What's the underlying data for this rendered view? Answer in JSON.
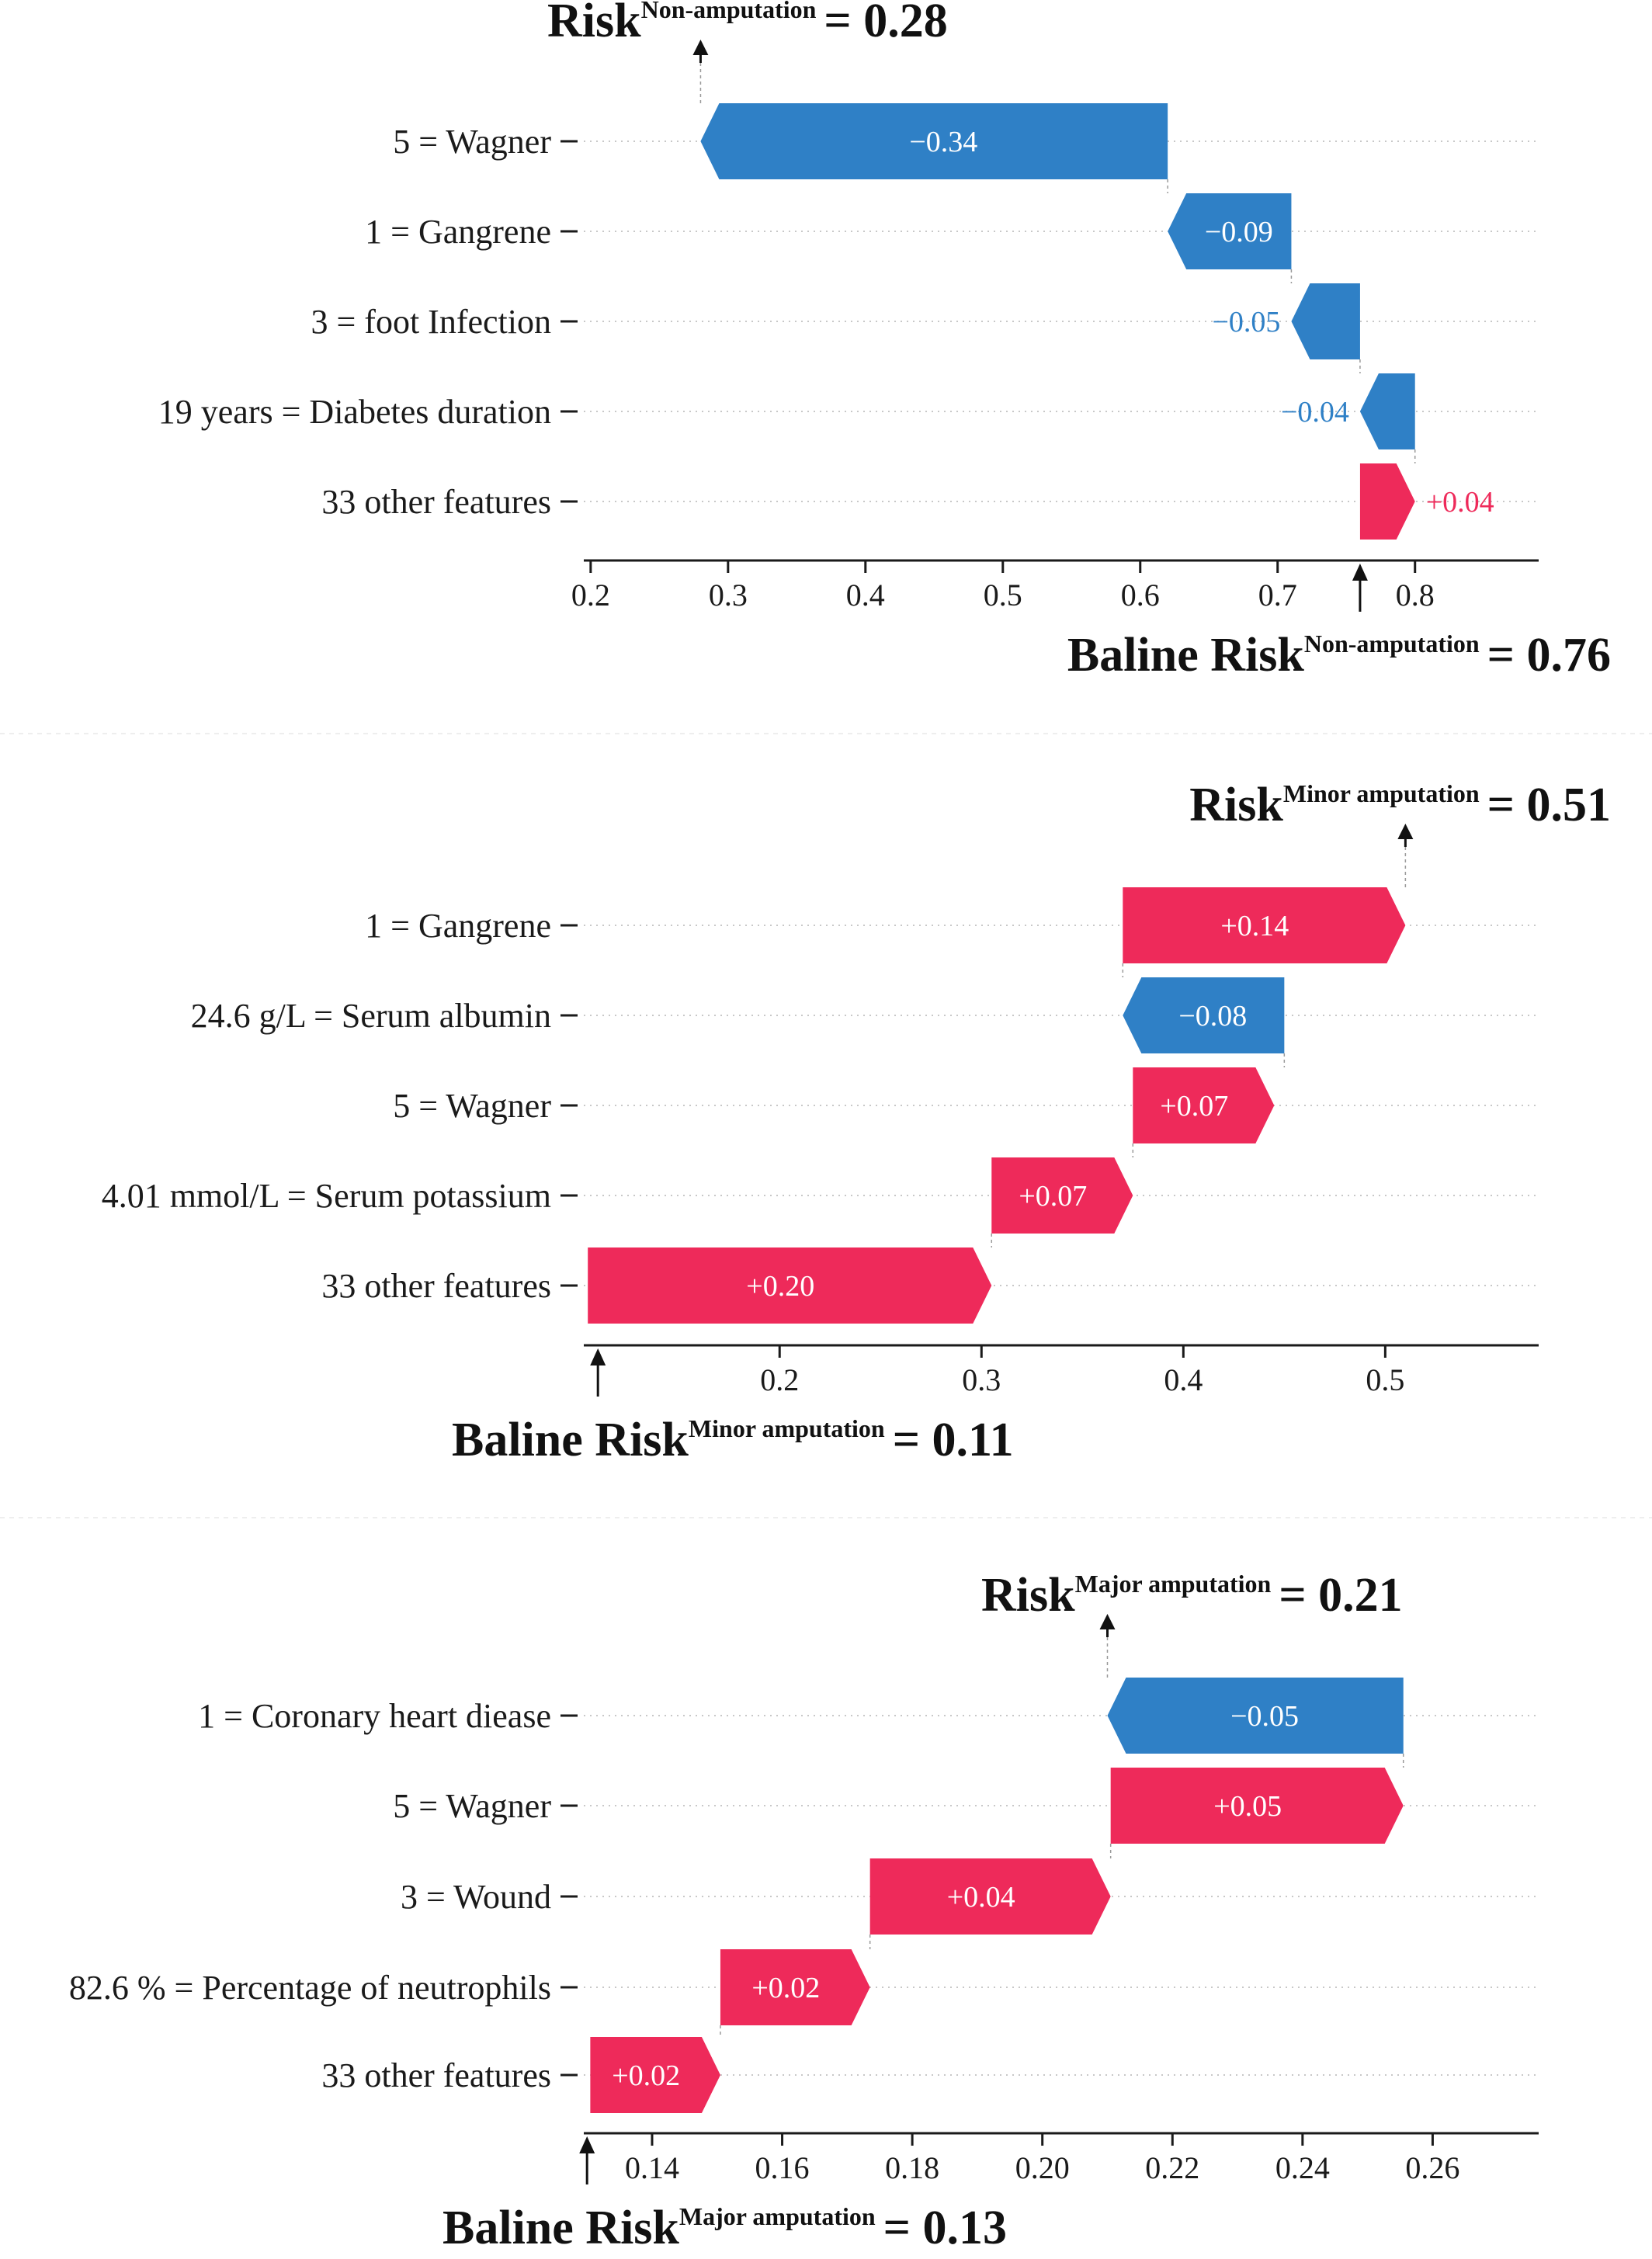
{
  "colors": {
    "positive": "#ee2a5a",
    "negative": "#2f80c6",
    "axis": "#1a1a1a",
    "grid": "#c8c8c8",
    "connector": "#9a9a9a"
  },
  "chart_data": [
    {
      "type": "waterfall",
      "final_risk": {
        "prefix": "Risk",
        "superscript": "Non-amputation",
        "suffix": "= 0.28",
        "value": 0.28
      },
      "base_risk": {
        "prefix": "Baline Risk",
        "superscript": "Non-amputation",
        "suffix": "= 0.76",
        "value": 0.76
      },
      "xlim": [
        0.195,
        0.89
      ],
      "ticks": [
        0.2,
        0.3,
        0.4,
        0.5,
        0.6,
        0.7,
        0.8
      ],
      "tick_labels": [
        "0.2",
        "0.3",
        "0.4",
        "0.5",
        "0.6",
        "0.7",
        "0.8"
      ],
      "features": [
        {
          "label": "5 = Wagner",
          "value": -0.34,
          "value_label": "−0.34",
          "start": 0.62,
          "end": 0.28
        },
        {
          "label": "1 = Gangrene",
          "value": -0.09,
          "value_label": "−0.09",
          "start": 0.71,
          "end": 0.62
        },
        {
          "label": "3 = foot Infection",
          "value": -0.05,
          "value_label": "−0.05",
          "start": 0.76,
          "end": 0.71
        },
        {
          "label": "19 years = Diabetes duration",
          "value": -0.04,
          "value_label": "−0.04",
          "start": 0.8,
          "end": 0.76
        },
        {
          "label": "33 other features",
          "value": 0.04,
          "value_label": "+0.04",
          "start": 0.76,
          "end": 0.8
        }
      ]
    },
    {
      "type": "waterfall",
      "final_risk": {
        "prefix": "Risk",
        "superscript": "Minor amputation",
        "suffix": "= 0.51",
        "value": 0.51
      },
      "base_risk": {
        "prefix": "Baline Risk",
        "superscript": "Minor amputation",
        "suffix": "= 0.11",
        "value": 0.11
      },
      "xlim": [
        0.103,
        0.576
      ],
      "ticks": [
        0.2,
        0.3,
        0.4,
        0.5
      ],
      "tick_labels": [
        "0.2",
        "0.3",
        "0.4",
        "0.5"
      ],
      "features": [
        {
          "label": "1 = Gangrene",
          "value": 0.14,
          "value_label": "+0.14",
          "start": 0.37,
          "end": 0.51
        },
        {
          "label": "24.6 g/L = Serum albumin",
          "value": -0.08,
          "value_label": "−0.08",
          "start": 0.45,
          "end": 0.37
        },
        {
          "label": "5 = Wagner",
          "value": 0.07,
          "value_label": "+0.07",
          "start": 0.375,
          "end": 0.445
        },
        {
          "label": "4.01 mmol/L = Serum potassium",
          "value": 0.07,
          "value_label": "+0.07",
          "start": 0.305,
          "end": 0.375
        },
        {
          "label": "33 other features",
          "value": 0.2,
          "value_label": "+0.20",
          "start": 0.105,
          "end": 0.305
        }
      ]
    },
    {
      "type": "waterfall",
      "final_risk": {
        "prefix": "Risk",
        "superscript": "Major amputation",
        "suffix": "= 0.21",
        "value": 0.21
      },
      "base_risk": {
        "prefix": "Baline Risk",
        "superscript": "Major amputation",
        "suffix": "= 0.13",
        "value": 0.13
      },
      "xlim": [
        0.1295,
        0.2763
      ],
      "ticks": [
        0.14,
        0.16,
        0.18,
        0.2,
        0.22,
        0.24,
        0.26
      ],
      "tick_labels": [
        "0.14",
        "0.16",
        "0.18",
        "0.20",
        "0.22",
        "0.24",
        "0.26"
      ],
      "features": [
        {
          "label": "1 =  Coronary heart diease",
          "value": -0.05,
          "value_label": "−0.05",
          "start": 0.2555,
          "end": 0.21
        },
        {
          "label": "5 = Wagner",
          "value": 0.05,
          "value_label": "+0.05",
          "start": 0.2105,
          "end": 0.2555
        },
        {
          "label": "3 = Wound",
          "value": 0.04,
          "value_label": "+0.04",
          "start": 0.1735,
          "end": 0.2105
        },
        {
          "label": "82.6 % = Percentage of neutrophils",
          "value": 0.02,
          "value_label": "+0.02",
          "start": 0.1505,
          "end": 0.1735
        },
        {
          "label": "33 other features",
          "value": 0.02,
          "value_label": "+0.02",
          "start": 0.1305,
          "end": 0.1505
        }
      ]
    }
  ]
}
